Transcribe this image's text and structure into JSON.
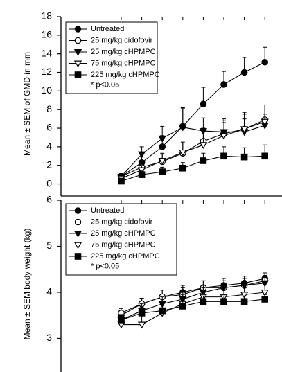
{
  "chart_data": [
    {
      "type": "line",
      "y_label": "Mean ± SEM of GMD in mm",
      "categories": [
        null,
        null,
        null,
        null,
        null,
        null,
        null,
        null
      ],
      "ylim": [
        -1.3,
        18
      ],
      "yticks": [
        0,
        2,
        4,
        6,
        8,
        10,
        12,
        14,
        16,
        18
      ],
      "note": "* p<0.05",
      "series": [
        {
          "name": "Untreated",
          "color": "#000000",
          "marker": "circle",
          "filled": true,
          "values": [
            0.8,
            2.3,
            4.0,
            6.2,
            8.6,
            10.7,
            12.0,
            13.1
          ],
          "errors": [
            0.3,
            0.6,
            1.2,
            2.0,
            1.8,
            1.4,
            1.6,
            1.6
          ]
        },
        {
          "name": "25 mg/kg cidofovir",
          "color": "#000000",
          "marker": "circle",
          "filled": false,
          "values": [
            0.8,
            1.8,
            2.4,
            3.3,
            4.6,
            5.4,
            5.9,
            6.9
          ],
          "errors": [
            0.3,
            0.6,
            0.8,
            1.2,
            1.4,
            1.6,
            1.8,
            1.6
          ]
        },
        {
          "name": "25 mg/kg cHPMPC",
          "color": "#000000",
          "marker": "triangle-down",
          "filled": true,
          "values": [
            0.8,
            3.2,
            4.9,
            6.1,
            5.7,
            5.6,
            5.6,
            6.3
          ],
          "errors": [
            0.3,
            0.8,
            1.3,
            2.0,
            1.4,
            1.2,
            1.4,
            1.2
          ]
        },
        {
          "name": "75 mg/kg cHPMPC",
          "color": "#000000",
          "marker": "triangle-down",
          "filled": false,
          "values": [
            0.6,
            1.5,
            2.5,
            3.4,
            4.2,
            5.2,
            5.9,
            6.7
          ],
          "errors": [
            0.3,
            0.5,
            0.8,
            1.0,
            1.4,
            1.4,
            1.6,
            1.8
          ]
        },
        {
          "name": "225 mg/kg cHPMPC",
          "color": "#000000",
          "marker": "square",
          "filled": true,
          "values": [
            0.3,
            1.0,
            1.3,
            1.7,
            2.5,
            3.0,
            2.9,
            3.0
          ],
          "errors": [
            0.2,
            0.4,
            0.5,
            0.6,
            0.8,
            1.0,
            1.0,
            1.2
          ]
        }
      ]
    },
    {
      "type": "line",
      "y_label": "Mean ± SEM body weight (kg)",
      "categories": [
        null,
        null,
        null,
        null,
        null,
        null,
        null,
        null
      ],
      "ylim": [
        2.27,
        6
      ],
      "yticks": [
        3,
        4,
        5,
        6
      ],
      "note": "* p<0.05",
      "series": [
        {
          "name": "Untreated",
          "color": "#000000",
          "marker": "circle",
          "filled": true,
          "values": [
            3.5,
            3.75,
            3.9,
            4.0,
            4.1,
            4.15,
            4.2,
            4.3
          ],
          "errors": [
            0.1,
            0.12,
            0.15,
            0.15,
            0.15,
            0.15,
            0.15,
            0.12
          ]
        },
        {
          "name": "25 mg/kg cidofovir",
          "color": "#000000",
          "marker": "circle",
          "filled": false,
          "values": [
            3.55,
            3.75,
            3.9,
            3.95,
            4.1,
            4.1,
            4.15,
            4.25
          ],
          "errors": [
            0.1,
            0.12,
            0.15,
            0.15,
            0.15,
            0.15,
            0.15,
            0.12
          ]
        },
        {
          "name": "25 mg/kg cHPMPC",
          "color": "#000000",
          "marker": "triangle-down",
          "filled": true,
          "values": [
            3.4,
            3.6,
            3.75,
            3.85,
            4.0,
            4.1,
            4.15,
            4.2
          ],
          "errors": [
            0.12,
            0.15,
            0.15,
            0.15,
            0.15,
            0.15,
            0.15,
            0.15
          ]
        },
        {
          "name": "75 mg/kg cHPMPC",
          "color": "#000000",
          "marker": "triangle-down",
          "filled": false,
          "values": [
            3.3,
            3.3,
            3.55,
            3.75,
            3.9,
            3.9,
            3.95,
            4.0
          ],
          "errors": [
            0.15,
            0.25,
            0.25,
            0.2,
            0.2,
            0.2,
            0.2,
            0.2
          ]
        },
        {
          "name": "225 mg/kg cHPMPC",
          "color": "#000000",
          "marker": "square",
          "filled": true,
          "values": [
            3.4,
            3.55,
            3.6,
            3.7,
            3.8,
            3.8,
            3.8,
            3.85
          ],
          "errors": [
            0.1,
            0.12,
            0.12,
            0.12,
            0.12,
            0.12,
            0.12,
            0.1
          ]
        }
      ]
    }
  ]
}
